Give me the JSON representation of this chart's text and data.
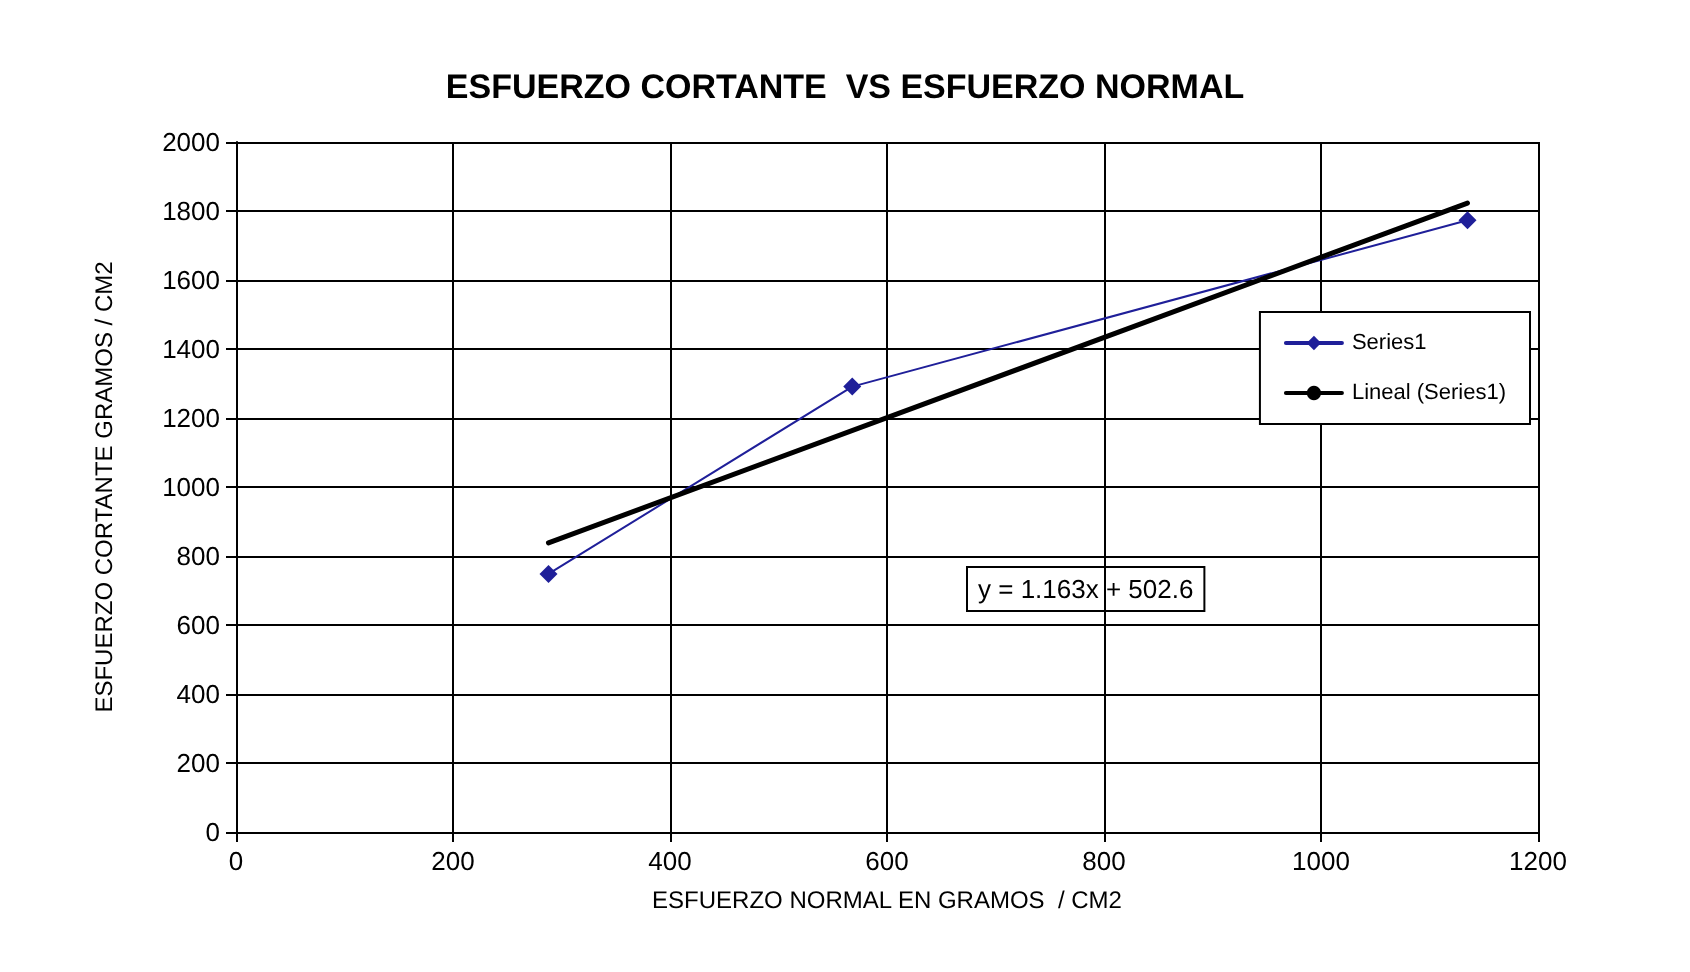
{
  "chart_data": {
    "type": "line",
    "title": "ESFUERZO CORTANTE  VS ESFUERZO NORMAL",
    "xlabel": "ESFUERZO NORMAL EN GRAMOS  / CM2",
    "ylabel": "ESFUERZO CORTANTE GRAMOS / CM2",
    "series": [
      {
        "name": "Series1",
        "color": "#1f1f99",
        "marker": "diamond",
        "x": [
          288,
          568,
          1135
        ],
        "values": [
          748,
          1291,
          1773
        ]
      },
      {
        "name": "Lineal (Series1)",
        "color": "#000000",
        "marker": "none",
        "x": [
          288,
          1135
        ],
        "values": [
          838,
          1823
        ]
      }
    ],
    "annotations": [
      "y = 1.163x + 502.6"
    ],
    "xlim": [
      0,
      1200
    ],
    "xticks": [
      0,
      200,
      400,
      600,
      800,
      1000,
      1200
    ],
    "ylim": [
      0,
      2000
    ],
    "yticks": [
      0,
      200,
      400,
      600,
      800,
      1000,
      1200,
      1400,
      1600,
      1800,
      2000
    ],
    "grid": true,
    "legend": "right"
  }
}
